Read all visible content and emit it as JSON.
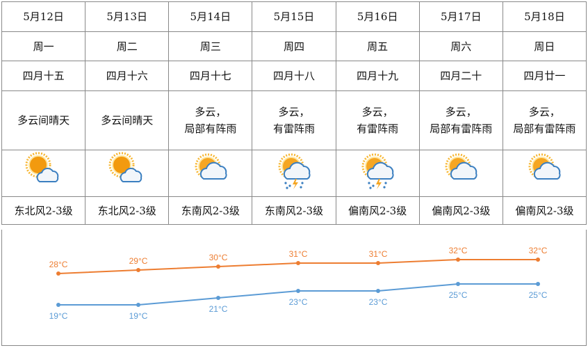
{
  "days": [
    {
      "date": "5月12日",
      "weekday": "周一",
      "lunar": "四月十五",
      "desc1": "多云间晴天",
      "desc2": "",
      "icon": "partly-sunny-icon",
      "wind": "东北风2-3级"
    },
    {
      "date": "5月13日",
      "weekday": "周二",
      "lunar": "四月十六",
      "desc1": "多云间晴天",
      "desc2": "",
      "icon": "partly-sunny-icon",
      "wind": "东北风2-3级"
    },
    {
      "date": "5月14日",
      "weekday": "周三",
      "lunar": "四月十七",
      "desc1": "多云，",
      "desc2": "局部有阵雨",
      "icon": "cloudy-icon",
      "wind": "东南风2-3级"
    },
    {
      "date": "5月15日",
      "weekday": "周四",
      "lunar": "四月十八",
      "desc1": "多云，",
      "desc2": "有雷阵雨",
      "icon": "thunderstorm-icon",
      "wind": "东南风2-3级"
    },
    {
      "date": "5月16日",
      "weekday": "周五",
      "lunar": "四月十九",
      "desc1": "多云，",
      "desc2": "有雷阵雨",
      "icon": "thunderstorm-icon",
      "wind": "偏南风2-3级"
    },
    {
      "date": "5月17日",
      "weekday": "周六",
      "lunar": "四月二十",
      "desc1": "多云，",
      "desc2": "局部有雷阵雨",
      "icon": "cloudy-icon",
      "wind": "偏南风2-3级"
    },
    {
      "date": "5月18日",
      "weekday": "周日",
      "lunar": "四月廿一",
      "desc1": "多云，",
      "desc2": "局部有雷阵雨",
      "icon": "cloudy-icon",
      "wind": "偏南风2-3级"
    }
  ],
  "chart_data": {
    "type": "line",
    "x": [
      "5月12日",
      "5月13日",
      "5月14日",
      "5月15日",
      "5月16日",
      "5月17日",
      "5月18日"
    ],
    "series": [
      {
        "values": [
          28,
          29,
          30,
          31,
          31,
          32,
          32
        ],
        "labels": [
          "28°C",
          "29°C",
          "30°C",
          "31°C",
          "31°C",
          "32°C",
          "32°C"
        ],
        "color": "#ed7d31"
      },
      {
        "values": [
          19,
          19,
          21,
          23,
          23,
          25,
          25
        ],
        "labels": [
          "19°C",
          "19°C",
          "21°C",
          "23°C",
          "23°C",
          "25°C",
          "25°C"
        ],
        "color": "#5b9bd5"
      }
    ],
    "grid": false,
    "axes_visible": false
  }
}
